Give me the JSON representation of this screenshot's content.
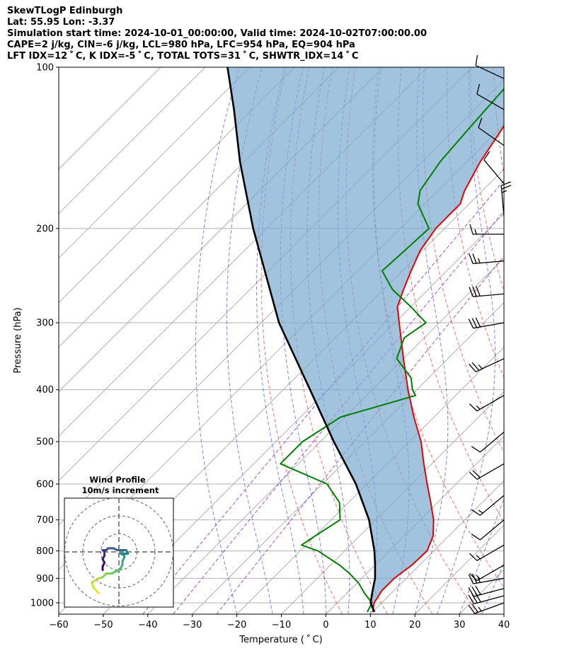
{
  "chart_data": {
    "type": "line",
    "title_lines": [
      "SkewTLogP Edinburgh",
      "Lat: 55.95   Lon: -3.37",
      "Simulation start time: 2024-10-01_00:00:00, Valid time: 2024-10-02T07:00:00.00",
      "CAPE=2 j/kg, CIN=-6 j/kg, LCL=980 hPa, LFC=954 hPa, EQ=904 hPa",
      "LFT IDX=12$^\\circ$C, K IDX=-5$^\\circ$C, TOTAL TOTS=31$^\\circ$C, SHWTR_IDX=14$^\\circ$C"
    ],
    "title_display": [
      "SkewTLogP Edinburgh",
      "Lat: 55.95   Lon: -3.37",
      "Simulation start time: 2024-10-01_00:00:00, Valid time: 2024-10-02T07:00:00.00",
      "CAPE=2 j/kg, CIN=-6 j/kg, LCL=980 hPa, LFC=954 hPa, EQ=904 hPa",
      "LFT IDX=12 ˚ C, K IDX=-5 ˚ C, TOTAL TOTS=31 ˚ C, SHWTR_IDX=14 ˚ C"
    ],
    "xlabel": "Temperature ( ˚ C)",
    "ylabel": "Pressure (hPa)",
    "xlim": [
      -60,
      40
    ],
    "ylim": [
      1050,
      100
    ],
    "x_ticks": [
      -60,
      -50,
      -40,
      -30,
      -20,
      -10,
      0,
      10,
      20,
      30,
      40
    ],
    "x_tick_labels": [
      "−60",
      "−50",
      "−40",
      "−30",
      "−20",
      "−10",
      "0",
      "10",
      "20",
      "30",
      "40"
    ],
    "y_ticks": [
      100,
      200,
      300,
      400,
      500,
      600,
      700,
      800,
      900,
      1000
    ],
    "y_tick_labels": [
      "100",
      "200",
      "300",
      "400",
      "500",
      "600",
      "700",
      "800",
      "900",
      "1000"
    ],
    "grid": true,
    "colors": {
      "temperature": "#e60000",
      "dewpoint": "#008000",
      "parcel": "#000000",
      "cape_fill": "#7aaad0",
      "dry_adiabat": "#ff3333",
      "moist_adiabat": "#2233ff",
      "mixing_ratio": "#8800cc",
      "grid": "#b0b0b0"
    },
    "series": [
      {
        "name": "Temperature",
        "pressure": [
          1040,
          1000,
          950,
          900,
          850,
          800,
          750,
          700,
          650,
          600,
          550,
          500,
          450,
          400,
          350,
          300,
          280,
          260,
          240,
          220,
          200,
          180,
          170,
          150,
          130,
          110,
          100
        ],
        "values": [
          10,
          8.3,
          7.3,
          7.3,
          8.3,
          8.5,
          6.5,
          3.0,
          -1.5,
          -6.5,
          -11.8,
          -17.4,
          -24.5,
          -32.0,
          -40.0,
          -49.0,
          -53.0,
          -55.5,
          -58.0,
          -60.5,
          -62.0,
          -62.0,
          -64.0,
          -67.0,
          -69.5,
          -72.5,
          -73.5
        ]
      },
      {
        "name": "Dewpoint",
        "pressure": [
          1040,
          1000,
          960,
          920,
          880,
          850,
          800,
          780,
          750,
          700,
          650,
          600,
          550,
          500,
          450,
          410,
          400,
          380,
          350,
          320,
          300,
          280,
          260,
          240,
          220,
          200,
          180,
          170,
          150,
          130,
          110,
          100
        ],
        "values": [
          8.8,
          7.8,
          4.0,
          0.5,
          -4.0,
          -8.0,
          -16.0,
          -21.0,
          -20.0,
          -18.0,
          -22.0,
          -29.0,
          -44.0,
          -44.0,
          -41.0,
          -29.0,
          -31.0,
          -34.0,
          -41.5,
          -44.5,
          -43.0,
          -50.0,
          -58.0,
          -64.5,
          -64.0,
          -63.5,
          -71.5,
          -74.0,
          -76.0,
          -77.0,
          -78.0,
          -79.0
        ]
      },
      {
        "name": "Parcel",
        "pressure": [
          1040,
          1000,
          960,
          900,
          850,
          800,
          700,
          600,
          500,
          400,
          300,
          200,
          150,
          120,
          100
        ],
        "values": [
          10.4,
          7.5,
          5.7,
          3.0,
          0.0,
          -3.3,
          -11.5,
          -22.5,
          -37.0,
          -54.0,
          -76.0,
          -103.0,
          -121.0,
          -134.0,
          -145.0
        ]
      }
    ],
    "dry_adiabats_theta_K": [
      273,
      283,
      293,
      303,
      313,
      323,
      333,
      343,
      353,
      363,
      373,
      383,
      393
    ],
    "moist_adiabats_start_C": [
      -20,
      -12,
      -5,
      0,
      5,
      10,
      15,
      20,
      25,
      30,
      35
    ],
    "mixing_ratio_lines_gkg": [
      0.1,
      0.2,
      0.5
    ],
    "wind_barbs": [
      {
        "p": 1000,
        "speed_kt": 25,
        "dir": 250
      },
      {
        "p": 970,
        "speed_kt": 30,
        "dir": 255
      },
      {
        "p": 940,
        "speed_kt": 30,
        "dir": 255
      },
      {
        "p": 900,
        "speed_kt": 25,
        "dir": 260
      },
      {
        "p": 850,
        "speed_kt": 15,
        "dir": 240
      },
      {
        "p": 780,
        "speed_kt": 15,
        "dir": 240
      },
      {
        "p": 700,
        "speed_kt": 10,
        "dir": 230
      },
      {
        "p": 630,
        "speed_kt": 15,
        "dir": 230
      },
      {
        "p": 550,
        "speed_kt": 20,
        "dir": 240
      },
      {
        "p": 480,
        "speed_kt": 10,
        "dir": 230
      },
      {
        "p": 410,
        "speed_kt": 15,
        "dir": 240
      },
      {
        "p": 350,
        "speed_kt": 25,
        "dir": 245
      },
      {
        "p": 300,
        "speed_kt": 30,
        "dir": 260
      },
      {
        "p": 265,
        "speed_kt": 30,
        "dir": 265
      },
      {
        "p": 230,
        "speed_kt": 25,
        "dir": 265
      },
      {
        "p": 205,
        "speed_kt": 15,
        "dir": 270
      },
      {
        "p": 190,
        "speed_kt": 25,
        "dir": 355
      },
      {
        "p": 165,
        "speed_kt": 10,
        "dir": 320
      },
      {
        "p": 140,
        "speed_kt": 10,
        "dir": 305
      },
      {
        "p": 120,
        "speed_kt": 10,
        "dir": 300
      },
      {
        "p": 105,
        "speed_kt": 10,
        "dir": 295
      }
    ],
    "hodograph": {
      "title": "Wind Profile",
      "subtitle": "10m/s increment",
      "ring_radii_ms": [
        10,
        20,
        30
      ],
      "path_uv": [
        [
          -11,
          -23
        ],
        [
          -12,
          -22
        ],
        [
          -14,
          -20
        ],
        [
          -15,
          -17
        ],
        [
          -12,
          -15
        ],
        [
          -9,
          -14
        ],
        [
          -7,
          -12
        ],
        [
          -4,
          -12
        ],
        [
          -2,
          -11
        ],
        [
          0,
          -10
        ],
        [
          1,
          -9
        ],
        [
          2,
          -7
        ],
        [
          2,
          -5
        ],
        [
          3,
          -3
        ],
        [
          3,
          -2
        ],
        [
          1,
          -1
        ],
        [
          4,
          -1
        ],
        [
          5,
          -1
        ],
        [
          4,
          1
        ],
        [
          2,
          1
        ],
        [
          -1,
          1
        ],
        [
          -3,
          2
        ],
        [
          -6,
          2
        ],
        [
          -7,
          1
        ],
        [
          -9,
          1
        ],
        [
          -8,
          0
        ],
        [
          -8,
          -2
        ],
        [
          -9,
          -4
        ],
        [
          -8,
          -6
        ],
        [
          -9,
          -8
        ],
        [
          -9,
          -10
        ]
      ]
    }
  }
}
